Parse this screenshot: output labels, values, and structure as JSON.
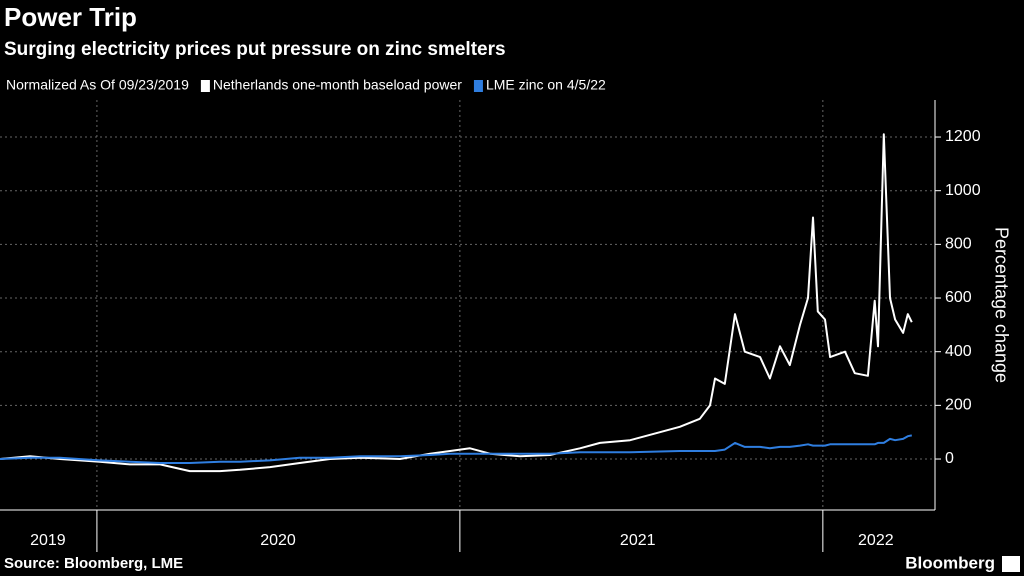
{
  "chart_data": {
    "type": "line",
    "title": "Power Trip",
    "subtitle": "Surging electricity prices put pressure on zinc smelters",
    "legend_title": "Normalized As Of 09/23/2019",
    "y_label": "Percentage change",
    "source": "Source: Bloomberg, LME",
    "brand": "Bloomberg",
    "x": [
      2019.733,
      2019.816,
      2019.898,
      2020.008,
      2020.091,
      2020.174,
      2020.256,
      2020.339,
      2020.394,
      2020.477,
      2020.559,
      2020.642,
      2020.725,
      2020.835,
      2020.918,
      2020.973,
      2021.028,
      2021.083,
      2021.166,
      2021.248,
      2021.331,
      2021.386,
      2021.469,
      2021.551,
      2021.606,
      2021.661,
      2021.689,
      2021.703,
      2021.73,
      2021.758,
      2021.785,
      2021.827,
      2021.854,
      2021.882,
      2021.909,
      2021.937,
      2021.959,
      2021.973,
      2021.986,
      2022.006,
      2022.02,
      2022.061,
      2022.088,
      2022.124,
      2022.143,
      2022.152,
      2022.168,
      2022.185,
      2022.199,
      2022.221,
      2022.234,
      2022.245
    ],
    "series": [
      {
        "name": "Netherlands one-month baseload power",
        "color": "#ffffff",
        "values": [
          0,
          10,
          0,
          -10,
          -20,
          -20,
          -45,
          -45,
          -40,
          -30,
          -15,
          0,
          5,
          0,
          20,
          30,
          40,
          20,
          10,
          15,
          40,
          60,
          70,
          100,
          120,
          150,
          200,
          300,
          280,
          540,
          400,
          380,
          300,
          420,
          350,
          500,
          600,
          900,
          550,
          520,
          380,
          400,
          320,
          310,
          590,
          420,
          1210,
          600,
          520,
          470,
          540,
          510
        ]
      },
      {
        "name": "LME zinc on 4/5/22",
        "color": "#2f7ee0",
        "values": [
          0,
          5,
          5,
          -5,
          -10,
          -15,
          -15,
          -10,
          -10,
          -5,
          5,
          5,
          10,
          10,
          15,
          20,
          20,
          20,
          20,
          20,
          25,
          25,
          25,
          28,
          30,
          30,
          30,
          30,
          35,
          60,
          45,
          45,
          40,
          45,
          45,
          50,
          55,
          50,
          50,
          50,
          55,
          55,
          55,
          55,
          55,
          60,
          60,
          75,
          70,
          75,
          85,
          88
        ]
      }
    ],
    "xlim": [
      2019.733,
      2022.309
    ],
    "xticks": [
      {
        "value": 2019.865,
        "label": "2019"
      },
      {
        "value": 2020.499,
        "label": "2020"
      },
      {
        "value": 2021.49,
        "label": "2021"
      },
      {
        "value": 2022.146,
        "label": "2022"
      }
    ],
    "xgrid": [
      2020,
      2021,
      2022
    ],
    "ylim": [
      -190,
      1338
    ],
    "yticks": [
      0,
      200,
      400,
      600,
      800,
      1000,
      1200
    ],
    "grid": true
  }
}
